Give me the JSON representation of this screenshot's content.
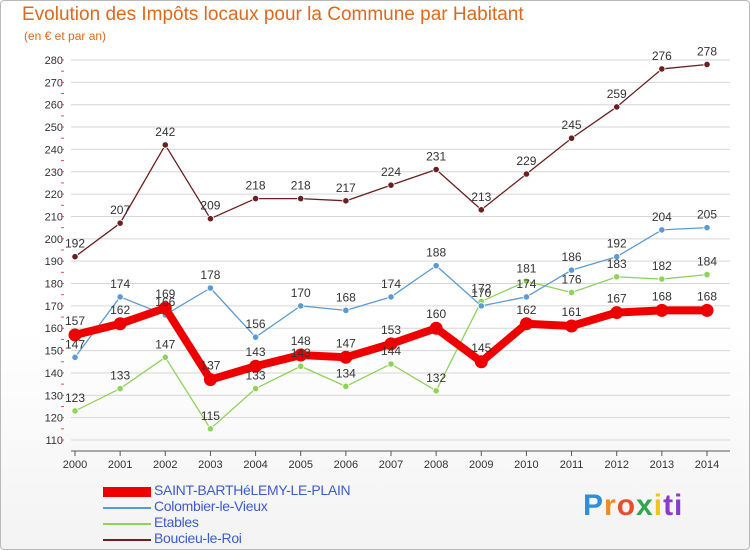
{
  "title": "Evolution des Impôts locaux pour la Commune par Habitant",
  "subtitle": "(en € et par an)",
  "brand": [
    "P",
    "r",
    "o",
    "x",
    "i",
    "ti"
  ],
  "chart_data": {
    "type": "line",
    "title": "Evolution des Impôts locaux pour la Commune par Habitant",
    "ylabel": "(en € et par an)",
    "xlabel": "",
    "categories": [
      "2000",
      "2001",
      "2002",
      "2003",
      "2004",
      "2005",
      "2006",
      "2007",
      "2008",
      "2009",
      "2010",
      "2011",
      "2012",
      "2013",
      "2014"
    ],
    "yticks": [
      110,
      120,
      130,
      140,
      150,
      160,
      170,
      180,
      190,
      200,
      210,
      220,
      230,
      240,
      250,
      260,
      270,
      280
    ],
    "ylim": [
      110,
      280
    ],
    "grid": "horizontal",
    "series": [
      {
        "name": "SAINT-BARTHéLEMY-LE-PLAIN",
        "color": "#ee0000",
        "values": [
          157,
          162,
          169,
          137,
          143,
          148,
          147,
          153,
          160,
          145,
          162,
          161,
          167,
          168,
          168
        ]
      },
      {
        "name": "Colombier-le-Vieux",
        "color": "#5b9bd5",
        "values": [
          147,
          174,
          166,
          178,
          156,
          170,
          168,
          174,
          188,
          170,
          174,
          186,
          192,
          204,
          205
        ]
      },
      {
        "name": "Etables",
        "color": "#8ed35a",
        "values": [
          123,
          133,
          147,
          115,
          133,
          143,
          134,
          144,
          132,
          172,
          181,
          176,
          183,
          182,
          184
        ]
      },
      {
        "name": "Boucieu-le-Roi",
        "color": "#6b1f1f",
        "values": [
          192,
          207,
          242,
          209,
          218,
          218,
          217,
          224,
          231,
          213,
          229,
          245,
          259,
          276,
          278
        ]
      }
    ]
  }
}
